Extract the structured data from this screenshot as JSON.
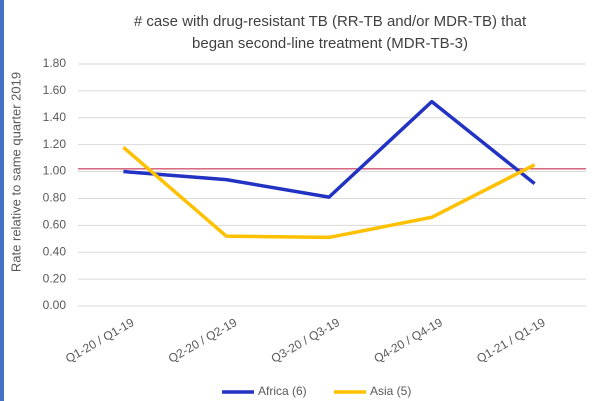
{
  "chart_data": {
    "type": "line",
    "title": [
      "# case with drug-resistant TB (RR-TB and/or MDR-TB) that",
      "began second-line treatment  (MDR-TB-3)"
    ],
    "y_label": "Rate relative to same quarter 2019",
    "categories": [
      "Q1-20 / Q1-19",
      "Q2-20 / Q2-19",
      "Q3-20 / Q3-19",
      "Q4-20 / Q4-19",
      "Q1-21 / Q1-19"
    ],
    "series": [
      {
        "name": "Africa (6)",
        "color": "#2233c4",
        "values": [
          1.0,
          0.94,
          0.81,
          1.52,
          0.91
        ]
      },
      {
        "name": "Asia (5)",
        "color": "#ffc000",
        "values": [
          1.18,
          0.52,
          0.51,
          0.66,
          1.05
        ]
      }
    ],
    "reference_line": 1.02,
    "reference_color": "#c0143c",
    "ylim": [
      0,
      1.8
    ],
    "yticks": [
      {
        "value": 0,
        "label": "0.00"
      },
      {
        "value": 0.2,
        "label": "0.20"
      },
      {
        "value": 0.4,
        "label": "0.40"
      },
      {
        "value": 0.6,
        "label": "0.60"
      },
      {
        "value": 0.8,
        "label": "0.80"
      },
      {
        "value": 1,
        "label": "1.00"
      },
      {
        "value": 1.2,
        "label": "1.20"
      },
      {
        "value": 1.4,
        "label": "1.40"
      },
      {
        "value": 1.6,
        "label": "1.60"
      },
      {
        "value": 1.8,
        "label": "1.80"
      }
    ],
    "legend": "bottom"
  }
}
